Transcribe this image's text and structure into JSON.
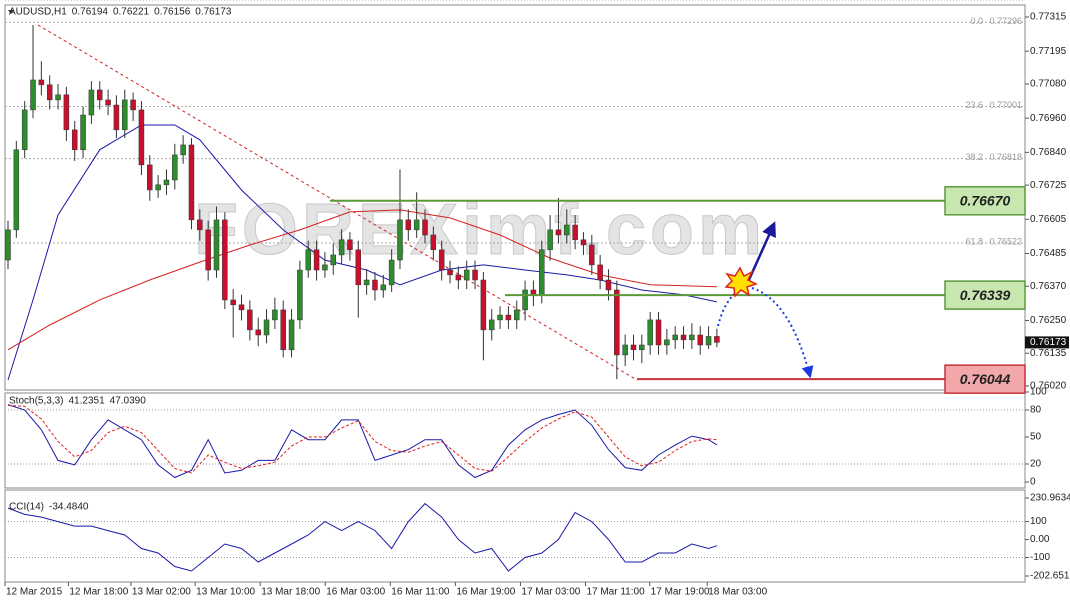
{
  "chart_data": [
    {
      "type": "candlestick",
      "title": "AUDUSD,H1",
      "watermark": "FOREXimf.com",
      "bull_color": "#2e8b2e",
      "bear_color": "#c8102e",
      "ylim": [
        0.7602,
        0.77315
      ],
      "yticks": [
        0.77315,
        0.77195,
        {
          "value": 0.7708,
          "label": "0.77080"
        },
        {
          "value": 0.7696,
          "label": "0.76960"
        },
        {
          "value": 0.7684,
          "label": "0.76840"
        },
        0.76725,
        0.76605,
        0.76485,
        {
          "value": 0.7637,
          "label": "0.76370"
        },
        {
          "value": 0.7625,
          "label": "0.76250"
        },
        0.76135,
        {
          "value": 0.7602,
          "label": "0.76020"
        }
      ],
      "open": [
        0.76462,
        0.76568,
        0.76849,
        0.76989,
        0.77094,
        0.77077,
        0.77024,
        0.77042,
        0.76919,
        0.76849,
        0.76971,
        0.77059,
        0.77024,
        0.77006,
        0.76919,
        0.77024,
        0.76989,
        0.76796,
        0.76708,
        0.76726,
        0.76743,
        0.76831,
        0.76866,
        0.76603,
        0.76568,
        0.76427,
        0.76603,
        0.76322,
        0.76305,
        0.76287,
        0.76217,
        0.76199,
        0.76252,
        0.76287,
        0.76147,
        0.76252,
        0.76427,
        0.76498,
        0.76427,
        0.76445,
        0.7648,
        0.76533,
        0.76498,
        0.76375,
        0.76392,
        0.76357,
        0.76375,
        0.76462,
        0.76603,
        0.76568,
        0.76603,
        0.7655,
        0.76498,
        0.76427,
        0.7641,
        0.76392,
        0.76427,
        0.76392,
        0.76217,
        0.76252,
        0.76269,
        0.76252,
        0.76287,
        0.76357,
        0.7634,
        0.76498,
        0.76568,
        0.7655,
        0.76585,
        0.76533,
        0.76515,
        0.76445,
        0.76392,
        0.76357,
        0.76129,
        0.76164,
        0.76147,
        0.76164,
        0.76252,
        0.76164,
        0.76182,
        0.76199,
        0.76182,
        0.76199,
        0.76164,
        0.76194
      ],
      "high": [
        0.766,
        0.7688,
        0.7702,
        0.77287,
        0.7716,
        0.7711,
        0.7708,
        0.7707,
        0.7695,
        0.77,
        0.7709,
        0.7709,
        0.7706,
        0.7704,
        0.7706,
        0.7705,
        0.7702,
        0.7683,
        0.7676,
        0.7678,
        0.7687,
        0.769,
        0.7689,
        0.7664,
        0.766,
        0.7665,
        0.7663,
        0.7636,
        0.7634,
        0.7632,
        0.7626,
        0.7629,
        0.7633,
        0.7632,
        0.7629,
        0.7646,
        0.7653,
        0.7653,
        0.7649,
        0.7652,
        0.7657,
        0.7656,
        0.7653,
        0.7643,
        0.7642,
        0.7641,
        0.765,
        0.7678,
        0.7664,
        0.767,
        0.7664,
        0.7658,
        0.7653,
        0.7646,
        0.7644,
        0.7646,
        0.7646,
        0.7642,
        0.7629,
        0.763,
        0.763,
        0.7632,
        0.7639,
        0.7639,
        0.7653,
        0.7662,
        0.7668,
        0.7664,
        0.7662,
        0.7656,
        0.7655,
        0.7648,
        0.7643,
        0.7639,
        0.762,
        0.762,
        0.762,
        0.7628,
        0.7628,
        0.7622,
        0.7623,
        0.7623,
        0.7624,
        0.7623,
        0.7623,
        0.76221
      ],
      "low": [
        0.7643,
        0.7654,
        0.7682,
        0.7696,
        0.7704,
        0.7699,
        0.7699,
        0.7688,
        0.7681,
        0.7682,
        0.7694,
        0.7699,
        0.7697,
        0.7689,
        0.7689,
        0.7695,
        0.7676,
        0.7667,
        0.7668,
        0.7669,
        0.7671,
        0.768,
        0.7657,
        0.7653,
        0.7639,
        0.764,
        0.7629,
        0.7619,
        0.7625,
        0.7618,
        0.7616,
        0.7617,
        0.7622,
        0.7612,
        0.7612,
        0.7622,
        0.764,
        0.7639,
        0.764,
        0.7641,
        0.7645,
        0.7646,
        0.7626,
        0.7634,
        0.7632,
        0.7633,
        0.7635,
        0.7643,
        0.7653,
        0.7654,
        0.7652,
        0.7646,
        0.7639,
        0.7638,
        0.7636,
        0.7636,
        0.7636,
        0.7611,
        0.7618,
        0.7622,
        0.7622,
        0.7622,
        0.7625,
        0.763,
        0.7631,
        0.7646,
        0.7652,
        0.7652,
        0.765,
        0.7648,
        0.7641,
        0.7636,
        0.7632,
        0.76044,
        0.7609,
        0.7611,
        0.761,
        0.7613,
        0.7613,
        0.7613,
        0.7615,
        0.7615,
        0.7615,
        0.7613,
        0.7615,
        0.76156
      ],
      "close": [
        0.76568,
        0.76849,
        0.76989,
        0.77094,
        0.77077,
        0.77024,
        0.77042,
        0.76919,
        0.76849,
        0.76971,
        0.77059,
        0.77024,
        0.77006,
        0.76919,
        0.77024,
        0.76989,
        0.76796,
        0.76708,
        0.76726,
        0.76743,
        0.76831,
        0.76866,
        0.76603,
        0.76568,
        0.76427,
        0.76603,
        0.76322,
        0.76305,
        0.76287,
        0.76217,
        0.76199,
        0.76252,
        0.76287,
        0.76147,
        0.76252,
        0.76427,
        0.76498,
        0.76427,
        0.76445,
        0.7648,
        0.76533,
        0.76498,
        0.76375,
        0.76392,
        0.76357,
        0.76375,
        0.76462,
        0.76603,
        0.76568,
        0.76603,
        0.7655,
        0.76498,
        0.76427,
        0.7641,
        0.76392,
        0.76427,
        0.76392,
        0.76217,
        0.76252,
        0.76269,
        0.76252,
        0.76287,
        0.76357,
        0.7634,
        0.76498,
        0.76568,
        0.7655,
        0.76585,
        0.76533,
        0.76515,
        0.76445,
        0.76392,
        0.76357,
        0.76129,
        0.76164,
        0.76147,
        0.76164,
        0.76252,
        0.76164,
        0.76182,
        0.76199,
        0.76182,
        0.76199,
        0.76164,
        0.76194,
        0.76173
      ],
      "overlays": [
        {
          "color": "#1a1aa8",
          "x": [
            0,
            3,
            6,
            11,
            16,
            20,
            23,
            28,
            33,
            38,
            43,
            47,
            52,
            57,
            62,
            67,
            71,
            76,
            81,
            85
          ],
          "values": [
            0.76041,
            0.76322,
            0.7662,
            0.76849,
            0.76936,
            0.76936,
            0.76884,
            0.76708,
            0.76568,
            0.76462,
            0.76427,
            0.76375,
            0.76427,
            0.76445,
            0.76427,
            0.7641,
            0.76392,
            0.76357,
            0.7634,
            0.76315
          ]
        },
        {
          "color": "#d42020",
          "x": [
            0,
            5,
            11,
            17,
            23,
            29,
            35,
            41,
            47,
            53,
            59,
            65,
            71,
            77,
            85
          ],
          "values": [
            0.76147,
            0.76234,
            0.76322,
            0.76392,
            0.76455,
            0.76515,
            0.76568,
            0.76631,
            0.76638,
            0.7661,
            0.7655,
            0.76469,
            0.7641,
            0.76375,
            0.76368
          ]
        }
      ],
      "fib": [
        {
          "label": "0.0",
          "price": 0.77296
        },
        {
          "label": "23.6",
          "price": 0.77001
        },
        {
          "label": "38.2",
          "price": 0.76818
        },
        {
          "label": "61.8",
          "price": 0.76522
        }
      ],
      "levels": [
        {
          "price": 0.7667,
          "label": "0.76670",
          "color": "#5a9a3a",
          "fill": "#c8e6b0"
        },
        {
          "price": 0.76339,
          "label": "0.76339",
          "color": "#5a9a3a",
          "fill": "#c8e6b0"
        },
        {
          "price": 0.76044,
          "label": "0.76044",
          "color": "#c8303a",
          "fill": "#f2a8aa"
        }
      ]
    },
    {
      "type": "line",
      "title": "Stoch(5,3,3)",
      "readout": [
        41.2351,
        {
          "value": 47.039,
          "label": "47.0390"
        }
      ],
      "ylim": [
        0,
        100
      ],
      "yticks": [
        100,
        80,
        50,
        20,
        0
      ],
      "levels": [
        80,
        20
      ],
      "x": [
        0,
        2,
        4,
        6,
        8,
        10,
        12,
        14,
        16,
        18,
        20,
        22,
        24,
        26,
        28,
        30,
        32,
        34,
        36,
        38,
        40,
        42,
        44,
        46,
        48,
        50,
        52,
        54,
        56,
        58,
        60,
        62,
        64,
        66,
        68,
        70,
        72,
        74,
        76,
        78,
        80,
        82,
        84,
        85
      ],
      "series": [
        {
          "color": "#1a1aa8",
          "values": [
            86,
            80,
            58,
            24,
            19,
            47,
            69,
            58,
            47,
            19,
            5,
            13,
            47,
            10,
            13,
            24,
            24,
            58,
            47,
            47,
            69,
            69,
            24,
            30,
            36,
            47,
            47,
            19,
            5,
            13,
            41,
            58,
            69,
            75,
            80,
            63,
            36,
            16,
            13,
            30,
            41,
            51,
            47,
            41.2351
          ]
        },
        {
          "color": "#e02020",
          "dashed": true,
          "values": [
            85,
            84,
            70,
            45,
            28,
            35,
            55,
            62,
            55,
            35,
            15,
            10,
            30,
            22,
            15,
            18,
            22,
            40,
            50,
            50,
            60,
            68,
            45,
            35,
            33,
            40,
            45,
            30,
            15,
            12,
            28,
            45,
            60,
            70,
            78,
            72,
            50,
            28,
            18,
            22,
            35,
            45,
            48,
            47.039
          ]
        }
      ]
    },
    {
      "type": "line",
      "title": "CCI(14)",
      "readout": [
        {
          "value": -34.484,
          "label": "-34.4840"
        }
      ],
      "ylim": [
        -202.6512,
        230.9634
      ],
      "yticks": [
        230.9634,
        100,
        {
          "value": 0,
          "label": "0.00"
        },
        -100,
        -202.6512
      ],
      "levels": [
        100,
        -100
      ],
      "x": [
        0,
        2,
        4,
        6,
        8,
        10,
        12,
        14,
        16,
        18,
        20,
        22,
        24,
        26,
        28,
        30,
        32,
        34,
        36,
        38,
        40,
        42,
        44,
        46,
        48,
        50,
        52,
        54,
        56,
        58,
        60,
        62,
        64,
        66,
        68,
        70,
        72,
        74,
        76,
        78,
        80,
        82,
        84,
        85
      ],
      "series": [
        {
          "color": "#1a1aa8",
          "values": [
            175,
            140,
            125,
            100,
            75,
            75,
            50,
            25,
            -50,
            -75,
            -150,
            -175,
            -100,
            -25,
            -50,
            -125,
            -75,
            -25,
            25,
            100,
            50,
            100,
            50,
            -50,
            100,
            200,
            125,
            0,
            -75,
            -50,
            -175,
            -100,
            -75,
            0,
            150,
            100,
            0,
            -125,
            -125,
            -75,
            -75,
            -25,
            -50,
            -34.484
          ]
        }
      ],
      "xticks": [
        {
          "value": 0,
          "label": "12 Mar 2015"
        },
        {
          "value": 7.6,
          "label": "12 Mar 18:00"
        },
        {
          "value": 15.1,
          "label": "13 Mar 02:00"
        },
        {
          "value": 22.8,
          "label": "13 Mar 10:00"
        },
        {
          "value": 30.6,
          "label": "13 Mar 18:00"
        },
        {
          "value": 38.4,
          "label": "16 Mar 03:00"
        },
        {
          "value": 46.2,
          "label": "16 Mar 11:00"
        },
        {
          "value": 54.0,
          "label": "16 Mar 19:00"
        },
        {
          "value": 61.8,
          "label": "17 Mar 03:00"
        },
        {
          "value": 69.6,
          "label": "17 Mar 11:00"
        },
        {
          "value": 77.3,
          "label": "17 Mar 19:00"
        },
        {
          "value": 84.2,
          "label": "18 Mar 03:00"
        }
      ]
    }
  ]
}
